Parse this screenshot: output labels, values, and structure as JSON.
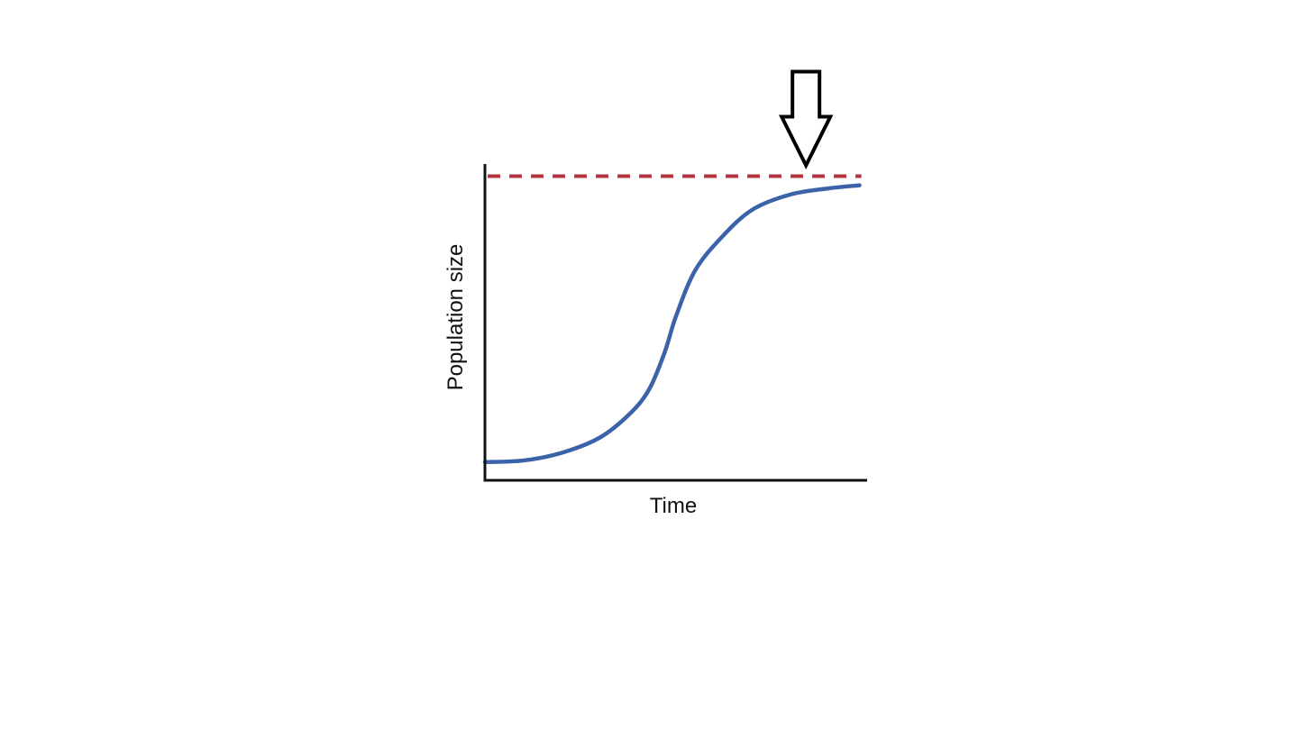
{
  "chart_data": {
    "type": "line",
    "title": "",
    "xlabel": "Time",
    "ylabel": "Population size",
    "xlim": [
      0,
      100
    ],
    "ylim": [
      0,
      104
    ],
    "grid": false,
    "legend": "none",
    "series": [
      {
        "color": "#3b63a9",
        "style": "solid",
        "x": [
          0,
          10,
          20,
          30,
          38,
          43,
          47,
          50,
          55,
          62,
          70,
          80,
          90,
          98
        ],
        "y": [
          6,
          6.5,
          9,
          14,
          22,
          30,
          42,
          54,
          69,
          80,
          89,
          94,
          96,
          97
        ]
      }
    ],
    "reference_lines": [
      {
        "orientation": "horizontal",
        "y": 100,
        "color": "#b5333f",
        "style": "dashed"
      }
    ],
    "annotations": [
      {
        "type": "down-arrow-outline",
        "points_to": {
          "x": 84,
          "y": 100
        },
        "color": "#000000"
      }
    ]
  }
}
